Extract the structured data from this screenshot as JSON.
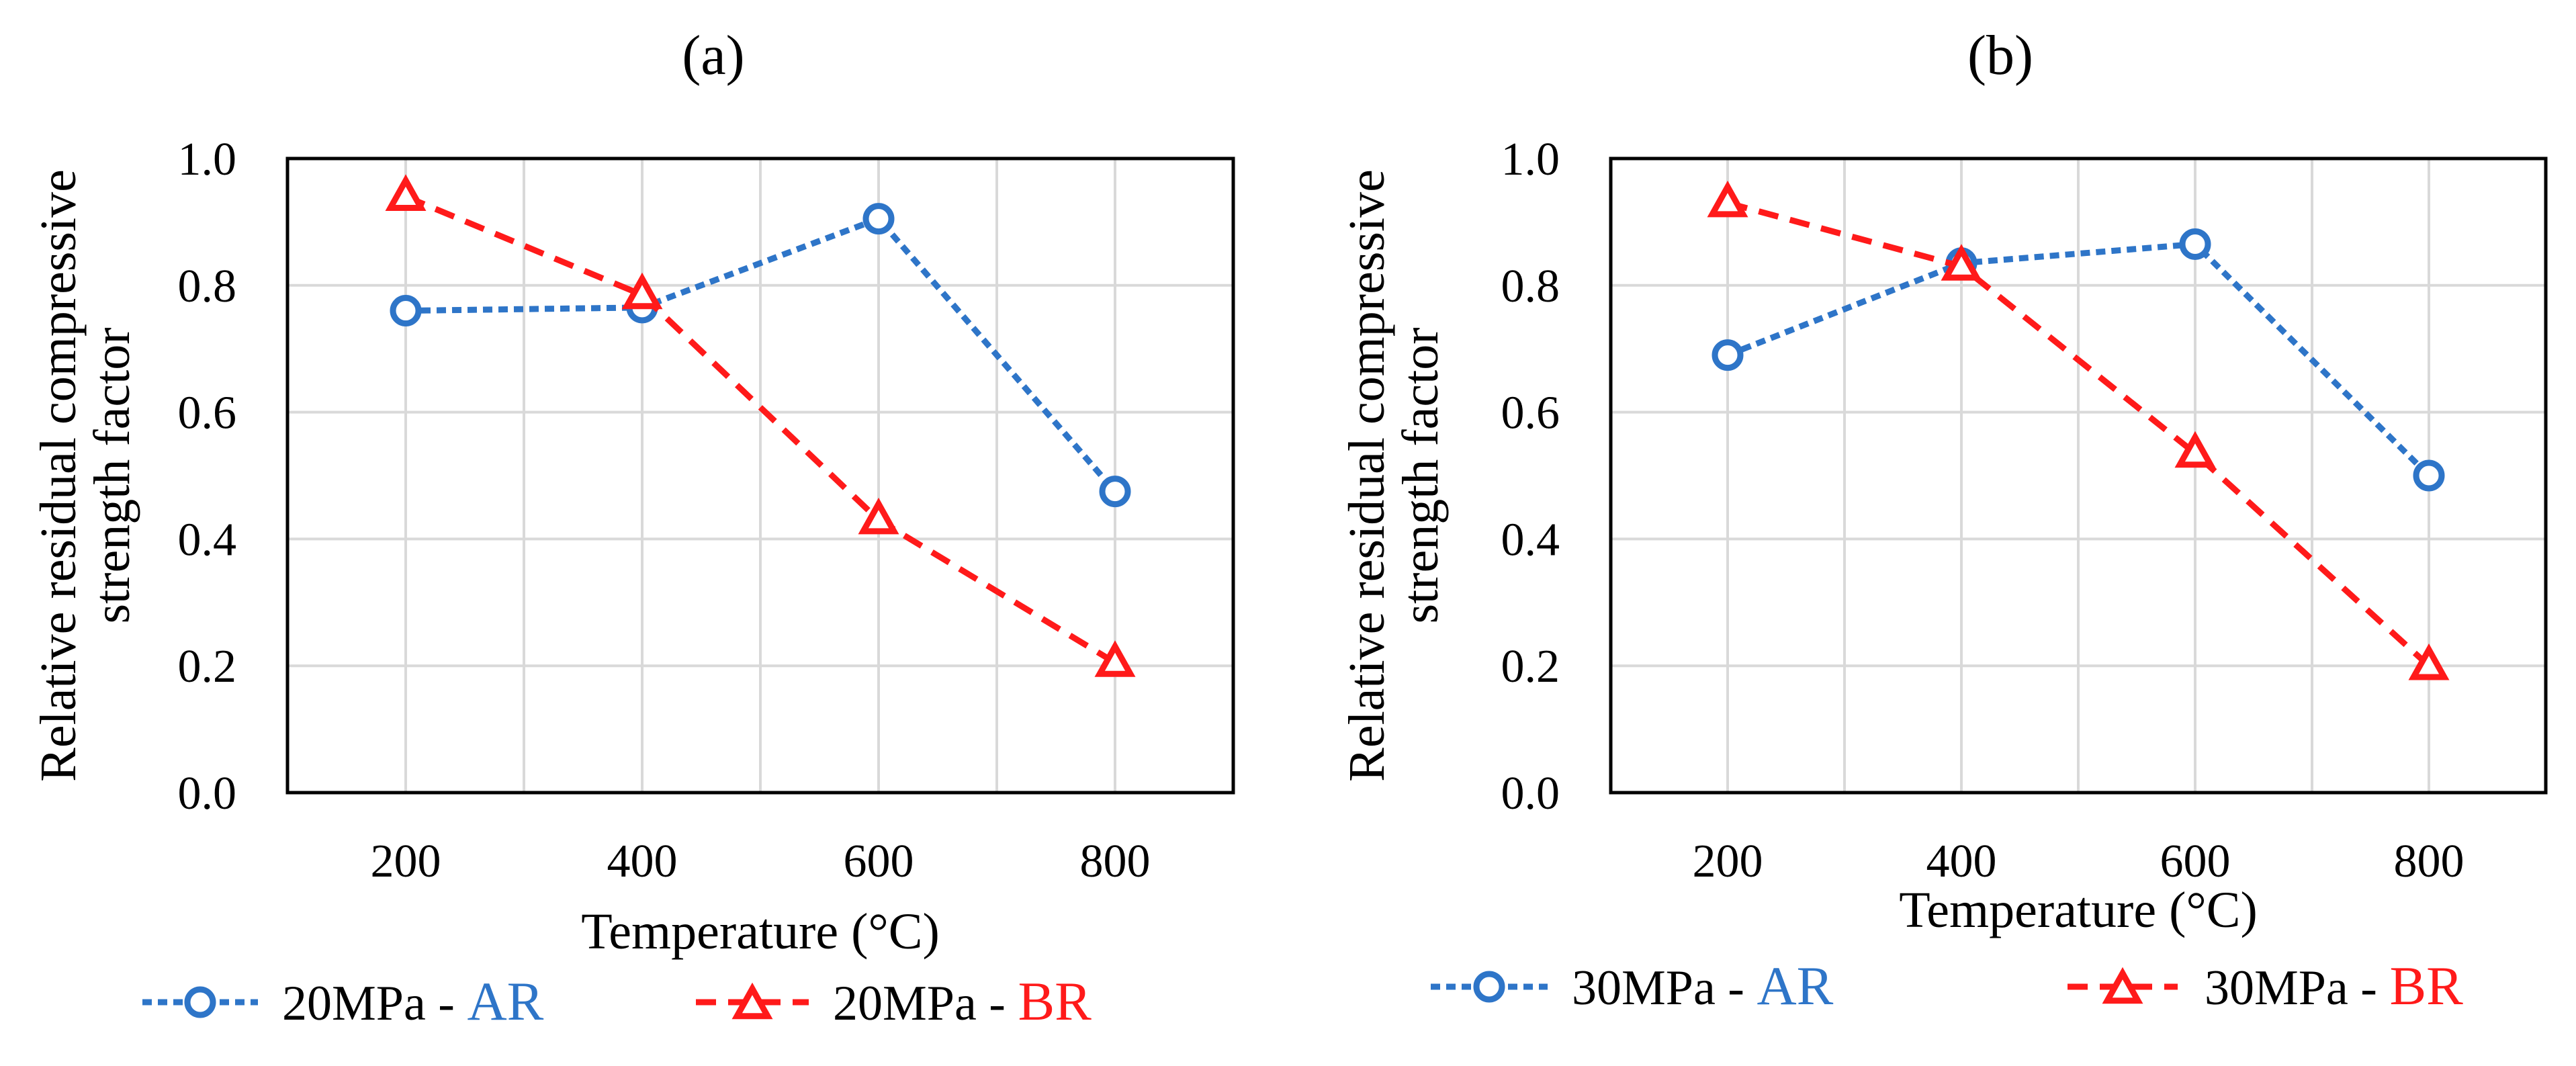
{
  "chart_data": [
    {
      "type": "line",
      "panel_label": "(a)",
      "xlabel": "Temperature (°C)",
      "ylabel": [
        "Relative residual compressive",
        "strength factor"
      ],
      "x_ticks": [
        "200",
        "400",
        "600",
        "800"
      ],
      "y_ticks": [
        "0.0",
        "0.2",
        "0.4",
        "0.6",
        "0.8",
        "1.0"
      ],
      "xlim": [
        100,
        900
      ],
      "ylim": [
        0,
        1.0
      ],
      "x_minor_step": 100,
      "grid": true,
      "legend_position": "bottom",
      "series": [
        {
          "legend_prefix": "20MPa - ",
          "legend_suffix": "AR",
          "color": "#2E75C8",
          "marker": "circle",
          "line": "dotted",
          "x": [
            200,
            400,
            600,
            800
          ],
          "y": [
            0.76,
            0.765,
            0.905,
            0.475
          ]
        },
        {
          "legend_prefix": "20MPa - ",
          "legend_suffix": "BR",
          "color": "#FF1A1A",
          "marker": "triangle",
          "line": "dashed",
          "x": [
            200,
            400,
            600,
            800
          ],
          "y": [
            0.94,
            0.785,
            0.43,
            0.205
          ]
        }
      ]
    },
    {
      "type": "line",
      "panel_label": "(b)",
      "xlabel": "Temperature (°C)",
      "ylabel": [
        "Relative residual compressive",
        "strength factor"
      ],
      "x_ticks": [
        "200",
        "400",
        "600",
        "800"
      ],
      "y_ticks": [
        "0.0",
        "0.2",
        "0.4",
        "0.6",
        "0.8",
        "1.0"
      ],
      "xlim": [
        100,
        900
      ],
      "ylim": [
        0,
        1.0
      ],
      "x_minor_step": 100,
      "grid": true,
      "legend_position": "bottom",
      "series": [
        {
          "legend_prefix": "30MPa - ",
          "legend_suffix": "AR",
          "color": "#2E75C8",
          "marker": "circle",
          "line": "dotted",
          "x": [
            200,
            400,
            600,
            800
          ],
          "y": [
            0.69,
            0.835,
            0.865,
            0.5
          ]
        },
        {
          "legend_prefix": "30MPa - ",
          "legend_suffix": "BR",
          "color": "#FF1A1A",
          "marker": "triangle",
          "line": "dashed",
          "x": [
            200,
            400,
            600,
            800
          ],
          "y": [
            0.93,
            0.83,
            0.535,
            0.2
          ]
        }
      ]
    }
  ]
}
